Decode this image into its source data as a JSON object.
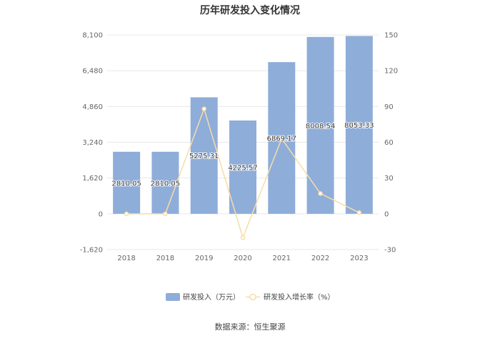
{
  "chart_data": {
    "type": "bar",
    "title": "历年研发投入变化情况",
    "categories": [
      "2018",
      "2018",
      "2019",
      "2020",
      "2021",
      "2022",
      "2023"
    ],
    "series": [
      {
        "name": "研发投入（万元）",
        "type": "bar",
        "axis": "left",
        "color": "#8eadd9",
        "values": [
          2810.05,
          2810.05,
          5275.31,
          4225.57,
          6869.17,
          8008.54,
          8053.33
        ],
        "labels": [
          "2810.05",
          "2810.05",
          "5275.31",
          "4225.57",
          "6869.17",
          "8008.54",
          "8053.33"
        ]
      },
      {
        "name": "研发投入增长率（%）",
        "type": "line",
        "axis": "right",
        "color": "#f8dca8",
        "values": [
          0,
          0,
          88,
          -20,
          63,
          17,
          1
        ]
      }
    ],
    "y_left": {
      "min": -1620,
      "max": 8100,
      "ticks": [
        "8,100",
        "6,480",
        "4,860",
        "3,240",
        "1,620",
        "0",
        "-1,620"
      ],
      "tick_values": [
        8100,
        6480,
        4860,
        3240,
        1620,
        0,
        -1620
      ]
    },
    "y_right": {
      "min": -30,
      "max": 150,
      "ticks": [
        "150",
        "120",
        "90",
        "60",
        "30",
        "0",
        "-30"
      ],
      "tick_values": [
        150,
        120,
        90,
        60,
        30,
        0,
        -30
      ]
    },
    "grid": true,
    "legend_position": "bottom"
  },
  "source": "数据来源：恒生聚源"
}
